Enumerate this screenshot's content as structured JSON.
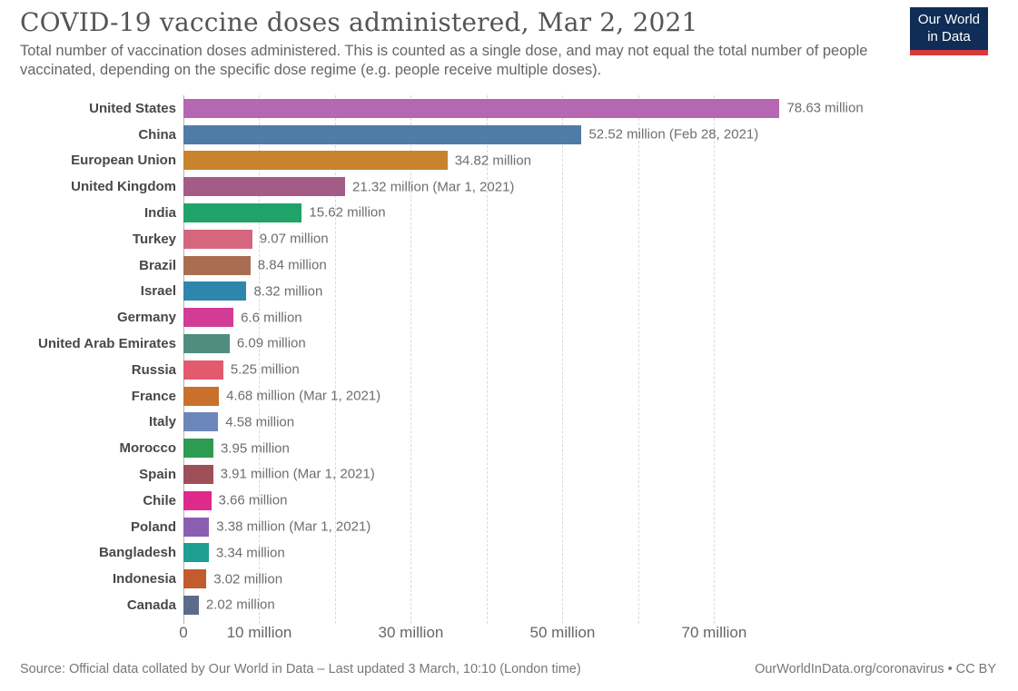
{
  "header": {
    "title": "COVID-19 vaccine doses administered, Mar 2, 2021",
    "subtitle": "Total number of vaccination doses administered. This is counted as a single dose, and may not equal the total number of people vaccinated, depending on the specific dose regime (e.g. people receive multiple doses).",
    "logo": {
      "line1": "Our World",
      "line2": "in Data",
      "bg_color": "#0f2d56",
      "stripe_color": "#d73a3a"
    }
  },
  "chart_data": {
    "type": "bar",
    "orientation": "horizontal",
    "title": "COVID-19 vaccine doses administered, Mar 2, 2021",
    "unit": "million doses",
    "xlabel": "",
    "ylabel": "",
    "xlim": [
      0,
      107.2
    ],
    "grid": "dashed-vertical",
    "gridlines_million": [
      10,
      20,
      30,
      40,
      50,
      60,
      70
    ],
    "x_ticks": [
      {
        "value": 0,
        "label": "0"
      },
      {
        "value": 10,
        "label": "10 million"
      },
      {
        "value": 30,
        "label": "30 million"
      },
      {
        "value": 50,
        "label": "50 million"
      },
      {
        "value": 70,
        "label": "70 million"
      }
    ],
    "bars": [
      {
        "country": "United States",
        "value": 78.63,
        "label": "78.63 million",
        "color": "#b567b1"
      },
      {
        "country": "China",
        "value": 52.52,
        "label": "52.52 million (Feb 28, 2021)",
        "color": "#4e7ca6"
      },
      {
        "country": "European Union",
        "value": 34.82,
        "label": "34.82 million",
        "color": "#c8832c"
      },
      {
        "country": "United Kingdom",
        "value": 21.32,
        "label": "21.32 million (Mar 1, 2021)",
        "color": "#a55b87"
      },
      {
        "country": "India",
        "value": 15.62,
        "label": "15.62 million",
        "color": "#20a368"
      },
      {
        "country": "Turkey",
        "value": 9.07,
        "label": "9.07 million",
        "color": "#d4677d"
      },
      {
        "country": "Brazil",
        "value": 8.84,
        "label": "8.84 million",
        "color": "#a96e51"
      },
      {
        "country": "Israel",
        "value": 8.32,
        "label": "8.32 million",
        "color": "#2f86ac"
      },
      {
        "country": "Germany",
        "value": 6.6,
        "label": "6.6 million",
        "color": "#d23c97"
      },
      {
        "country": "United Arab Emirates",
        "value": 6.09,
        "label": "6.09 million",
        "color": "#4f8d7f"
      },
      {
        "country": "Russia",
        "value": 5.25,
        "label": "5.25 million",
        "color": "#e15a6e"
      },
      {
        "country": "France",
        "value": 4.68,
        "label": "4.68 million (Mar 1, 2021)",
        "color": "#c9702c"
      },
      {
        "country": "Italy",
        "value": 4.58,
        "label": "4.58 million",
        "color": "#6d86ba"
      },
      {
        "country": "Morocco",
        "value": 3.95,
        "label": "3.95 million",
        "color": "#2d9b51"
      },
      {
        "country": "Spain",
        "value": 3.91,
        "label": "3.91 million (Mar 1, 2021)",
        "color": "#9e5059"
      },
      {
        "country": "Chile",
        "value": 3.66,
        "label": "3.66 million",
        "color": "#df2a8c"
      },
      {
        "country": "Poland",
        "value": 3.38,
        "label": "3.38 million (Mar 1, 2021)",
        "color": "#8a5fb2"
      },
      {
        "country": "Bangladesh",
        "value": 3.34,
        "label": "3.34 million",
        "color": "#1f9e92"
      },
      {
        "country": "Indonesia",
        "value": 3.02,
        "label": "3.02 million",
        "color": "#c25c2c"
      },
      {
        "country": "Canada",
        "value": 2.02,
        "label": "2.02 million",
        "color": "#5b6b8a"
      }
    ]
  },
  "footer": {
    "source": "Source: Official data collated by Our World in Data – Last updated 3 March, 10:10 (London time)",
    "link": "OurWorldInData.org/coronavirus • CC BY"
  }
}
